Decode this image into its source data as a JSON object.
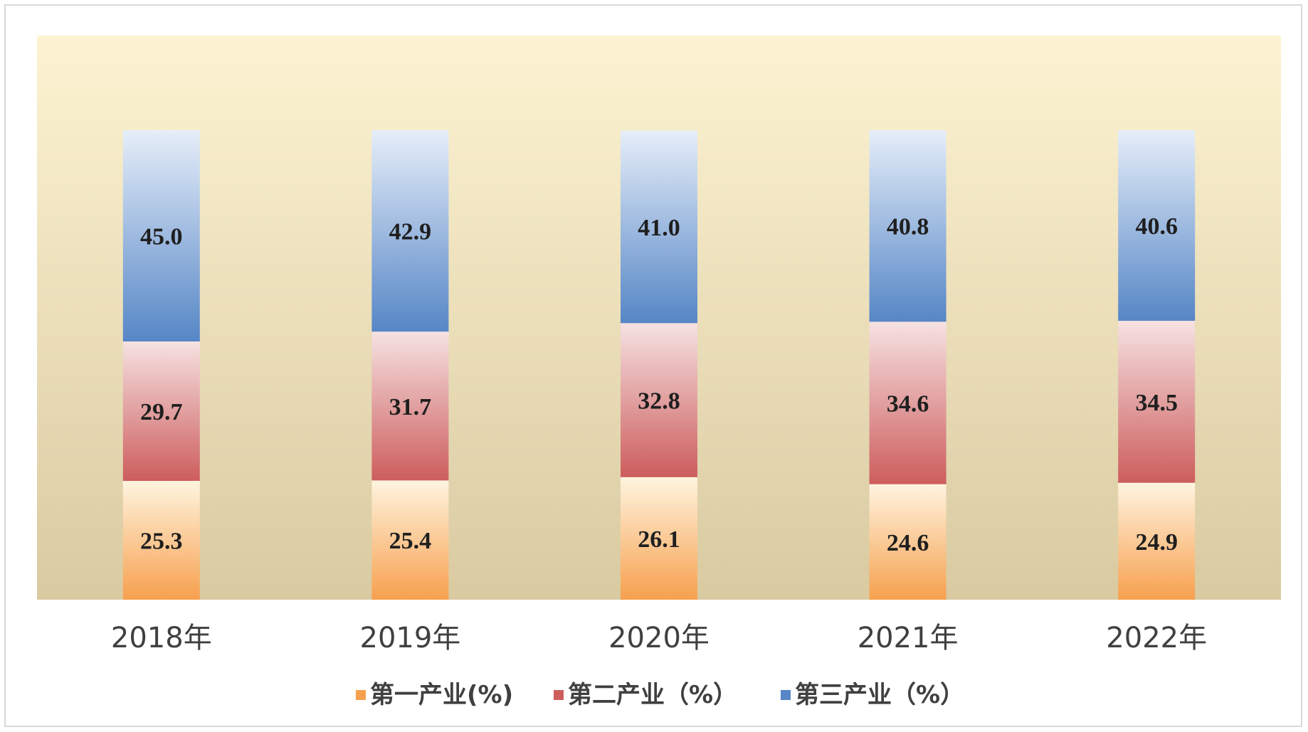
{
  "chart_data": {
    "type": "bar",
    "stacked": true,
    "categories": [
      "2018年",
      "2019年",
      "2020年",
      "2021年",
      "2022年"
    ],
    "series": [
      {
        "name": "第一产业(%)",
        "values": [
          25.3,
          25.4,
          26.1,
          24.6,
          24.9
        ],
        "color_top": "#fff4df",
        "color_bottom": "#f6a04e"
      },
      {
        "name": "第二产业（%）",
        "values": [
          29.7,
          31.7,
          32.8,
          34.6,
          34.5
        ],
        "color_top": "#f6e2e2",
        "color_bottom": "#cd5d5d"
      },
      {
        "name": "第三产业（%）",
        "values": [
          45.0,
          42.9,
          41.0,
          40.8,
          40.6
        ],
        "color_top": "#e6eef9",
        "color_bottom": "#5686c6"
      }
    ],
    "ylim": [
      0,
      100
    ],
    "grid": false,
    "legend_position": "bottom",
    "background": {
      "top": "#fdf3d2",
      "bottom": "#d9caa1"
    }
  }
}
